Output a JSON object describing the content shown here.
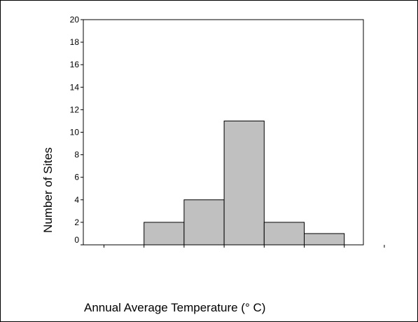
{
  "chart_data": {
    "type": "bar",
    "title": "",
    "xlabel": "Annual Average Temperature (° C)",
    "ylabel": "Number of Sites",
    "ylim": [
      0,
      20
    ],
    "yticks": [
      0,
      2,
      4,
      6,
      8,
      10,
      12,
      14,
      16,
      18,
      20
    ],
    "bin_count": 7,
    "values": [
      0,
      2,
      4,
      11,
      2,
      1,
      0
    ],
    "bar_color": "#c0c0c0",
    "edge_color": "#000000",
    "grid": false,
    "legend": "none"
  }
}
